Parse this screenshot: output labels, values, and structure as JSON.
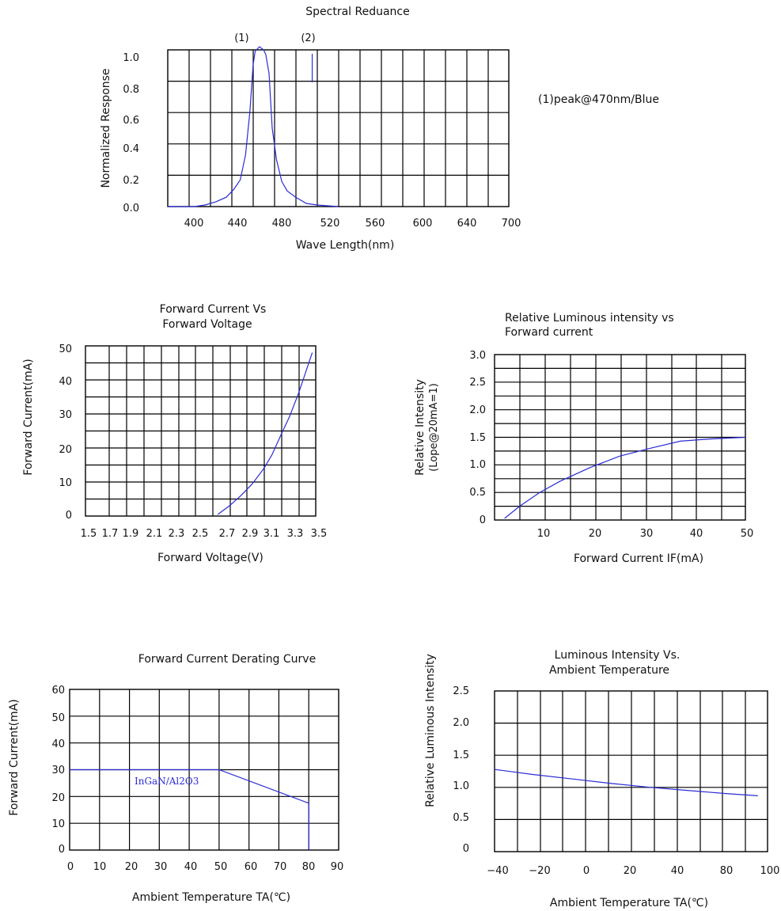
{
  "chart_data": [
    {
      "id": "spectral",
      "type": "line",
      "title": "Spectral  Reduance",
      "xlabel": "Wave Length(nm)",
      "ylabel": "Normalized  Response",
      "x_ticks": [
        "400",
        "440",
        "480",
        "520",
        "560",
        "600",
        "640",
        "700"
      ],
      "y_ticks": [
        "0.0",
        "0.2",
        "0.4",
        "0.6",
        "0.8",
        "1.0"
      ],
      "xlim": [
        380,
        700
      ],
      "ylim": [
        0,
        1.0
      ],
      "grid": true,
      "markers": [
        {
          "label": "(1)",
          "x": 462
        },
        {
          "label": "(2)",
          "x": 520
        }
      ],
      "annotation": "(1)peak@470nm/Blue",
      "series": [
        {
          "x": [
            380,
            405,
            415,
            425,
            435,
            442,
            448,
            453,
            457,
            460,
            462,
            466,
            470,
            472,
            475,
            478,
            482,
            487,
            492,
            500,
            510,
            520,
            540
          ],
          "y": [
            0.0,
            0.0,
            0.01,
            0.03,
            0.06,
            0.11,
            0.17,
            0.33,
            0.6,
            0.9,
            0.99,
            1.02,
            1.0,
            0.97,
            0.85,
            0.5,
            0.3,
            0.16,
            0.1,
            0.06,
            0.02,
            0.01,
            0.0
          ]
        }
      ]
    },
    {
      "id": "iv",
      "type": "line",
      "title_lines": [
        "Forward Current Vs",
        "Forward Voltage"
      ],
      "xlabel": "Forward Voltage(V)",
      "ylabel": "Forward Current(mA)",
      "x_ticks": [
        "1.5",
        "1.7",
        "1.9",
        "2.1",
        "2.3",
        "2.5",
        "2.7",
        "2.9",
        "3.1",
        "3.3",
        "3.5"
      ],
      "y_ticks": [
        "0",
        "10",
        "20",
        "30",
        "40",
        "50"
      ],
      "xlim": [
        1.5,
        3.5
      ],
      "ylim": [
        0,
        50
      ],
      "grid": true,
      "series": [
        {
          "x": [
            2.65,
            2.75,
            2.85,
            2.95,
            3.05,
            3.12,
            3.2,
            3.27,
            3.35,
            3.42,
            3.47
          ],
          "y": [
            0.5,
            3,
            6,
            9.5,
            14,
            18,
            24,
            29,
            36,
            43,
            48
          ]
        }
      ]
    },
    {
      "id": "luminous-current",
      "type": "line",
      "title_lines": [
        "Relative Luminous intensity vs",
        "Forward current"
      ],
      "xlabel": "Forward Current IF(mA)",
      "ylabel_lines": [
        "Relative Intensity",
        "(Lope@20mA=1)"
      ],
      "x_ticks": [
        "10",
        "20",
        "30",
        "40",
        "50"
      ],
      "y_ticks": [
        "0",
        "0.5",
        "1.0",
        "1.5",
        "2.0",
        "2.5",
        "3.0"
      ],
      "xlim": [
        0,
        50
      ],
      "ylim": [
        0,
        3.0
      ],
      "grid": true,
      "series": [
        {
          "x": [
            2,
            5,
            9,
            13,
            19,
            25,
            31,
            37,
            43,
            50
          ],
          "y": [
            0.03,
            0.25,
            0.5,
            0.7,
            0.95,
            1.16,
            1.3,
            1.43,
            1.47,
            1.5
          ]
        }
      ]
    },
    {
      "id": "derating",
      "type": "line",
      "title": "Forward Current Derating Curve",
      "xlabel": "Ambient Temperature TA(℃)",
      "ylabel": "Forward Current(mA)",
      "x_ticks": [
        "0",
        "10",
        "20",
        "30",
        "40",
        "50",
        "60",
        "70",
        "80",
        "90"
      ],
      "y_ticks": [
        "0",
        "10",
        "20",
        "30",
        "40",
        "50",
        "60"
      ],
      "xlim": [
        0,
        90
      ],
      "ylim": [
        0,
        60
      ],
      "grid": true,
      "series_label": "InGaN/Al2O3",
      "series": [
        {
          "x": [
            0,
            50,
            80,
            80
          ],
          "y": [
            30,
            30,
            17.5,
            0
          ]
        }
      ]
    },
    {
      "id": "luminous-temperature",
      "type": "line",
      "title_lines": [
        "Luminous Intensity Vs.",
        "Ambient Temperature"
      ],
      "xlabel": "Ambient Temperature TA(℃)",
      "ylabel": "Relative Luminous Intensity",
      "x_ticks": [
        "−40",
        "−20",
        "0",
        "20",
        "40",
        "80",
        "100"
      ],
      "y_ticks": [
        "0",
        "0.5",
        "1.0",
        "1.5",
        "2.0",
        "2.5"
      ],
      "xlim": [
        -40,
        100
      ],
      "ylim": [
        0,
        2.5
      ],
      "grid": true,
      "series": [
        {
          "x": [
            -40,
            -20,
            0,
            20,
            40,
            60,
            80,
            95
          ],
          "y": [
            1.28,
            1.2,
            1.13,
            1.06,
            1.0,
            0.95,
            0.9,
            0.87
          ]
        }
      ]
    }
  ]
}
